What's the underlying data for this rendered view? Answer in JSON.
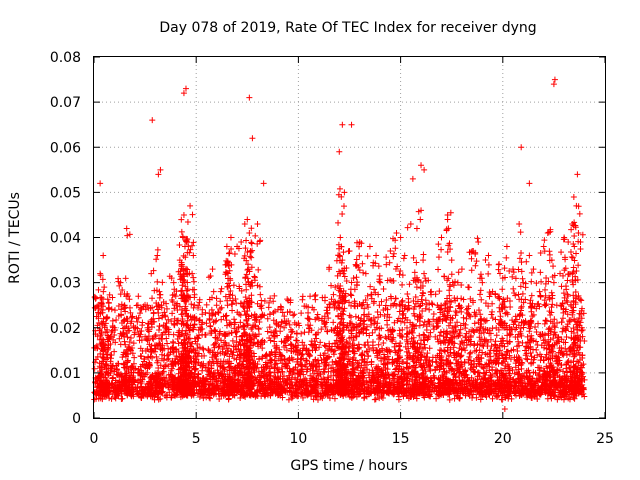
{
  "chart_data": {
    "type": "scatter",
    "title": "Day 078 of 2019, Rate Of TEC Index for receiver dyng",
    "xlabel": "GPS time / hours",
    "ylabel": "ROTI / TECUs",
    "xlim": [
      0,
      25
    ],
    "ylim": [
      0,
      0.08
    ],
    "xticks": [
      0,
      5,
      10,
      15,
      20,
      25
    ],
    "xtick_labels": [
      "0",
      "5",
      "10",
      "15",
      "20",
      "25"
    ],
    "yticks": [
      0,
      0.01,
      0.02,
      0.03,
      0.04,
      0.05,
      0.06,
      0.07,
      0.08
    ],
    "ytick_labels": [
      "0",
      "0.01",
      "0.02",
      "0.03",
      "0.04",
      "0.05",
      "0.06",
      "0.07",
      "0.08"
    ],
    "grid": true,
    "marker": "plus",
    "series": [
      {
        "name": "ROTI",
        "color": "#ff0000",
        "x": [
          0.2,
          0.3,
          0.45,
          0.5,
          0.6,
          0.8,
          1.0,
          1.3,
          1.5,
          1.6,
          1.8,
          2.0,
          2.3,
          2.5,
          2.8,
          2.9,
          3.1,
          3.2,
          3.3,
          3.5,
          3.8,
          4.0,
          4.2,
          4.3,
          4.35,
          4.4,
          4.45,
          4.5,
          4.55,
          4.6,
          4.8,
          5.0,
          5.3,
          5.5,
          5.8,
          6.0,
          6.2,
          6.5,
          6.7,
          6.8,
          7.0,
          7.2,
          7.4,
          7.5,
          7.55,
          7.6,
          7.65,
          7.7,
          8.0,
          8.2,
          8.5,
          8.8,
          9.0,
          9.3,
          9.5,
          9.8,
          10.0,
          10.3,
          10.5,
          10.8,
          11.0,
          11.3,
          11.5,
          11.8,
          12.0,
          12.05,
          12.1,
          12.15,
          12.2,
          12.3,
          12.5,
          12.7,
          12.8,
          13.0,
          13.3,
          13.5,
          13.8,
          14.0,
          14.3,
          14.5,
          14.8,
          15.0,
          15.2,
          15.5,
          15.7,
          15.8,
          16.0,
          16.1,
          16.2,
          16.5,
          16.8,
          17.0,
          17.3,
          17.5,
          17.8,
          18.0,
          18.3,
          18.5,
          18.8,
          19.0,
          19.3,
          19.5,
          19.8,
          20.0,
          20.2,
          20.5,
          20.8,
          21.0,
          21.3,
          21.5,
          21.8,
          22.0,
          22.2,
          22.4,
          22.5,
          22.8,
          23.0,
          23.2,
          23.4,
          23.5,
          23.6,
          23.7,
          23.8,
          0.1,
          0.7,
          1.2,
          1.9,
          2.6,
          3.4,
          4.1,
          4.9,
          5.6,
          6.3,
          7.1,
          7.9,
          8.6,
          9.4,
          10.1,
          10.9,
          11.6,
          12.4,
          13.1,
          13.9,
          14.6,
          15.4,
          16.3,
          17.1,
          17.9,
          18.6,
          19.4,
          20.1,
          20.9,
          21.6,
          22.3,
          23.1,
          23.9,
          2.85,
          3.15,
          3.25,
          4.7,
          6.5,
          7.6,
          7.75,
          8.3,
          12.15,
          12.25,
          12.6,
          15.6,
          16.0,
          16.15,
          17.3,
          20.9,
          21.3,
          22.5,
          22.55,
          23.65,
          12.0,
          12.1,
          4.4,
          4.5,
          0.3,
          19.8,
          20.1
        ],
        "y": [
          0.025,
          0.032,
          0.036,
          0.029,
          0.022,
          0.018,
          0.02,
          0.03,
          0.025,
          0.042,
          0.021,
          0.019,
          0.024,
          0.018,
          0.032,
          0.022,
          0.036,
          0.028,
          0.025,
          0.02,
          0.031,
          0.027,
          0.035,
          0.031,
          0.04,
          0.045,
          0.038,
          0.033,
          0.039,
          0.027,
          0.032,
          0.022,
          0.024,
          0.021,
          0.033,
          0.025,
          0.028,
          0.034,
          0.04,
          0.026,
          0.038,
          0.039,
          0.031,
          0.044,
          0.033,
          0.041,
          0.037,
          0.03,
          0.043,
          0.025,
          0.022,
          0.019,
          0.024,
          0.02,
          0.026,
          0.023,
          0.021,
          0.019,
          0.022,
          0.027,
          0.022,
          0.026,
          0.033,
          0.029,
          0.036,
          0.04,
          0.038,
          0.035,
          0.032,
          0.027,
          0.037,
          0.031,
          0.034,
          0.039,
          0.032,
          0.038,
          0.036,
          0.03,
          0.034,
          0.037,
          0.041,
          0.04,
          0.036,
          0.043,
          0.031,
          0.042,
          0.046,
          0.035,
          0.031,
          0.028,
          0.025,
          0.04,
          0.044,
          0.035,
          0.03,
          0.033,
          0.029,
          0.037,
          0.039,
          0.03,
          0.036,
          0.028,
          0.034,
          0.031,
          0.038,
          0.033,
          0.043,
          0.03,
          0.036,
          0.033,
          0.028,
          0.038,
          0.041,
          0.035,
          0.03,
          0.032,
          0.04,
          0.039,
          0.043,
          0.038,
          0.047,
          0.041,
          0.039,
          0.013,
          0.011,
          0.012,
          0.009,
          0.01,
          0.011,
          0.013,
          0.009,
          0.012,
          0.011,
          0.01,
          0.012,
          0.011,
          0.012,
          0.013,
          0.012,
          0.011,
          0.012,
          0.01,
          0.011,
          0.012,
          0.01,
          0.009,
          0.011,
          0.01,
          0.012,
          0.009,
          0.011,
          0.008,
          0.01,
          0.009,
          0.011,
          0.01,
          0.066,
          0.054,
          0.055,
          0.047,
          0.038,
          0.071,
          0.062,
          0.052,
          0.065,
          0.05,
          0.065,
          0.053,
          0.056,
          0.055,
          0.045,
          0.06,
          0.052,
          0.074,
          0.075,
          0.054,
          0.059,
          0.049,
          0.072,
          0.073,
          0.052,
          0.005,
          0.002
        ]
      }
    ]
  }
}
